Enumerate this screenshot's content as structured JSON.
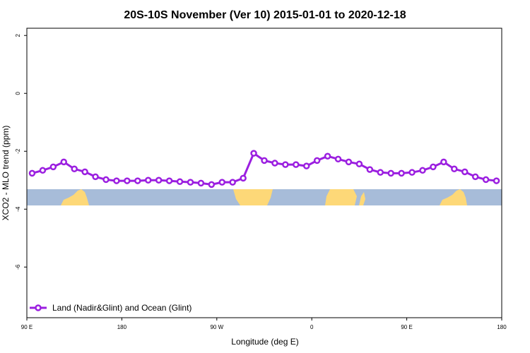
{
  "chart_data": {
    "type": "line",
    "title": "20S-10S November (Ver 10)   2015-01-01 to 2020-12-18",
    "x_label": "Longitude (deg E)",
    "y_label": "XCO2 - MLO trend (ppm)",
    "x": [
      95,
      105,
      115,
      125,
      135,
      145,
      155,
      165,
      175,
      185,
      195,
      205,
      215,
      225,
      235,
      245,
      255,
      265,
      275,
      285,
      295,
      305,
      315,
      325,
      335,
      345,
      355,
      365,
      375,
      385,
      395,
      405,
      415,
      425,
      435,
      445,
      455,
      465,
      475,
      485,
      495,
      505,
      515,
      525,
      535
    ],
    "series": [
      {
        "name": "Land (Nadir&Glint) and Ocean (Glint)",
        "color": "#9b1fe0",
        "values": [
          -2.76,
          -2.66,
          -2.54,
          -2.37,
          -2.61,
          -2.71,
          -2.88,
          -2.98,
          -3.02,
          -3.02,
          -3.02,
          -3.0,
          -3.0,
          -3.02,
          -3.05,
          -3.07,
          -3.1,
          -3.15,
          -3.07,
          -3.07,
          -2.93,
          -2.07,
          -2.32,
          -2.41,
          -2.46,
          -2.46,
          -2.51,
          -2.32,
          -2.17,
          -2.27,
          -2.37,
          -2.44,
          -2.63,
          -2.73,
          -2.76,
          -2.76,
          -2.73,
          -2.66,
          -2.54,
          -2.37,
          -2.61,
          -2.71,
          -2.88,
          -2.98,
          -3.02
        ]
      }
    ],
    "xlim": [
      90,
      540
    ],
    "xticks": [
      {
        "value": 90,
        "label": "90 E"
      },
      {
        "value": 180,
        "label": "180"
      },
      {
        "value": 270,
        "label": "90 W"
      },
      {
        "value": 360,
        "label": "0"
      },
      {
        "value": 450,
        "label": "90 E"
      },
      {
        "value": 540,
        "label": "180"
      }
    ],
    "ylim": [
      -7.75,
      2.25
    ],
    "yticks": [
      -6,
      -4,
      -2,
      0,
      2
    ],
    "legend": "bottom-left"
  }
}
